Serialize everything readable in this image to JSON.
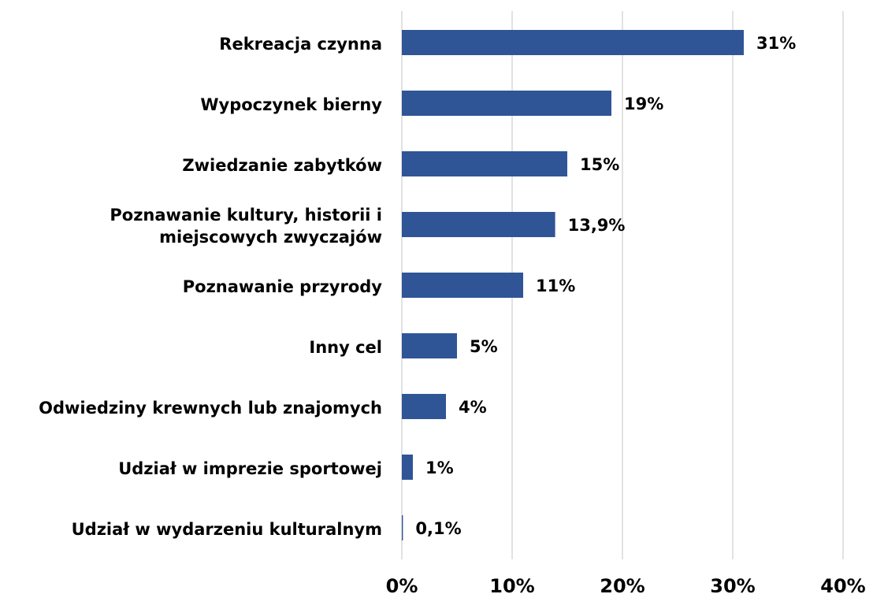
{
  "chart_data": {
    "type": "hbar",
    "categories": [
      "Rekreacja czynna",
      "Wypoczynek bierny",
      "Zwiedzanie zabytków",
      "Poznawanie kultury, historii i miejscowych zwyczajów",
      "Poznawanie przyrody",
      "Inny cel",
      "Odwiedziny krewnych lub znajomych",
      "Udział w imprezie sportowej",
      "Udział w wydarzeniu kulturalnym"
    ],
    "values": [
      31,
      19,
      15,
      13.9,
      11,
      5,
      4,
      1,
      0.1
    ],
    "value_labels": [
      "31%",
      "19%",
      "15%",
      "13,9%",
      "11%",
      "5%",
      "4%",
      "1%",
      "0,1%"
    ],
    "color": "#2f5597",
    "xlim": [
      0,
      40
    ],
    "xticks": [
      {
        "value": 0,
        "label": "0%"
      },
      {
        "value": 10,
        "label": "10%"
      },
      {
        "value": 20,
        "label": "20%"
      },
      {
        "value": 30,
        "label": "30%"
      },
      {
        "value": 40,
        "label": "40%"
      }
    ],
    "grid": true
  }
}
